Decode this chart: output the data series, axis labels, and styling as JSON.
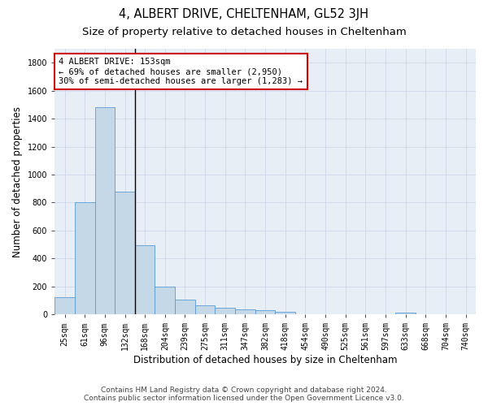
{
  "title": "4, ALBERT DRIVE, CHELTENHAM, GL52 3JH",
  "subtitle": "Size of property relative to detached houses in Cheltenham",
  "xlabel": "Distribution of detached houses by size in Cheltenham",
  "ylabel": "Number of detached properties",
  "footer_line1": "Contains HM Land Registry data © Crown copyright and database right 2024.",
  "footer_line2": "Contains public sector information licensed under the Open Government Licence v3.0.",
  "categories": [
    "25sqm",
    "61sqm",
    "96sqm",
    "132sqm",
    "168sqm",
    "204sqm",
    "239sqm",
    "275sqm",
    "311sqm",
    "347sqm",
    "382sqm",
    "418sqm",
    "454sqm",
    "490sqm",
    "525sqm",
    "561sqm",
    "597sqm",
    "633sqm",
    "668sqm",
    "704sqm",
    "740sqm"
  ],
  "values": [
    125,
    800,
    1480,
    875,
    495,
    200,
    105,
    65,
    45,
    33,
    30,
    20,
    0,
    0,
    0,
    0,
    0,
    13,
    0,
    0,
    0
  ],
  "bar_color": "#c5d8e8",
  "bar_edge_color": "#5b9bd5",
  "annotation_line1": "4 ALBERT DRIVE: 153sqm",
  "annotation_line2": "← 69% of detached houses are smaller (2,950)",
  "annotation_line3": "30% of semi-detached houses are larger (1,283) →",
  "annotation_box_color": "#ffffff",
  "annotation_box_edge_color": "#cc0000",
  "ylim": [
    0,
    1900
  ],
  "yticks": [
    0,
    200,
    400,
    600,
    800,
    1000,
    1200,
    1400,
    1600,
    1800
  ],
  "ax_background_color": "#e8eef5",
  "background_color": "#ffffff",
  "grid_color": "#c8d4e8",
  "title_fontsize": 10.5,
  "subtitle_fontsize": 9.5,
  "axis_label_fontsize": 8.5,
  "tick_fontsize": 7,
  "annotation_fontsize": 7.5,
  "footer_fontsize": 6.5,
  "line_x_index": 3.5
}
